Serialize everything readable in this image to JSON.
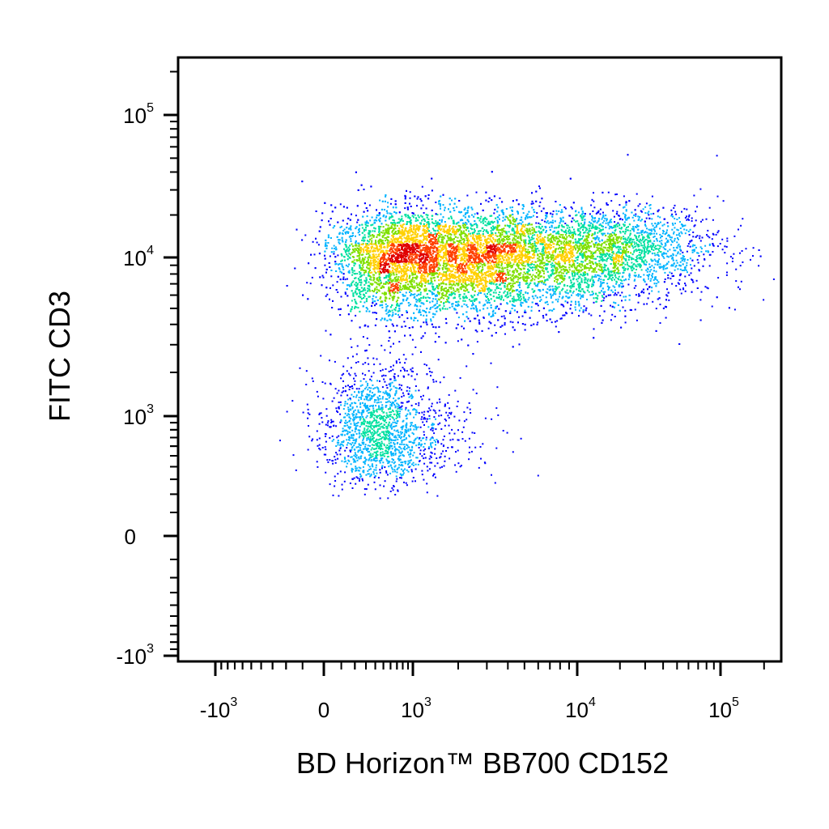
{
  "chart_data": {
    "type": "scatter",
    "subtype": "flow cytometry density dot plot (biexponential axes)",
    "xlabel": "BD Horizon™ BB700 CD152",
    "ylabel": "FITC  CD3",
    "x_scale": "biexponential",
    "y_scale": "biexponential",
    "xlim": [
      -2000,
      200000
    ],
    "ylim": [
      -1300,
      200000
    ],
    "x_ticks": [
      {
        "value": -1000,
        "base": "-10",
        "exp": "3"
      },
      {
        "value": 0,
        "base": "0",
        "exp": ""
      },
      {
        "value": 1000,
        "base": "10",
        "exp": "3"
      },
      {
        "value": 10000,
        "base": "10",
        "exp": "4"
      },
      {
        "value": 100000,
        "base": "10",
        "exp": "5"
      }
    ],
    "y_ticks": [
      {
        "value": -1000,
        "base": "-10",
        "exp": "3"
      },
      {
        "value": 0,
        "base": "0",
        "exp": ""
      },
      {
        "value": 1000,
        "base": "10",
        "exp": "3"
      },
      {
        "value": 10000,
        "base": "10",
        "exp": "4"
      },
      {
        "value": 100000,
        "base": "10",
        "exp": "5"
      }
    ],
    "colormap": [
      "#0000ff",
      "#00b4ff",
      "#00e0a0",
      "#7fe000",
      "#ffd000",
      "#ff4000",
      "#e00000"
    ],
    "populations": [
      {
        "description": "main CD3+ cluster",
        "x_center": 2000,
        "y_center": 10000,
        "x_spread_decades": 0.55,
        "y_spread_decades": 0.17,
        "fraction": 0.78
      },
      {
        "description": "low CD3 tail",
        "x_center": 450,
        "y_center": 800,
        "x_spread_decades": 0.35,
        "y_spread_decades": 0.22,
        "fraction": 0.12
      },
      {
        "description": "high CD152 shoulder",
        "x_center": 20000,
        "y_center": 12000,
        "x_spread_decades": 0.35,
        "y_spread_decades": 0.15,
        "fraction": 0.1
      }
    ],
    "grid": false,
    "legend": "none"
  }
}
